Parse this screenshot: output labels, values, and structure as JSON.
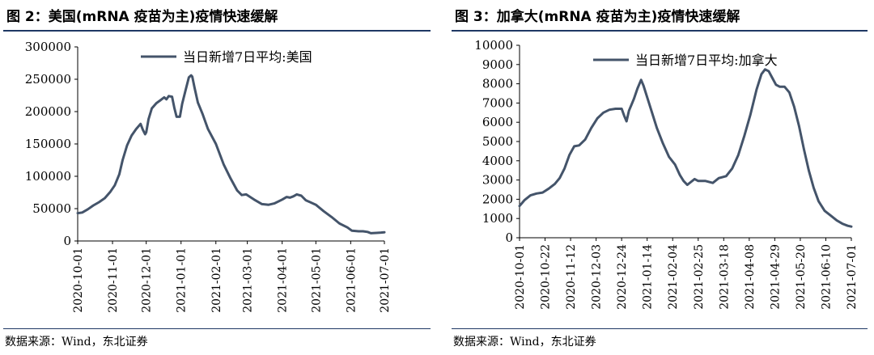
{
  "source_text": "数据来源：Wind，东北证券",
  "chart_data": [
    {
      "type": "line",
      "title": "图 2：美国(mRNA 疫苗为主)疫情快速缓解",
      "xlabel": "",
      "ylabel": "",
      "ylim": [
        0,
        300000
      ],
      "yticks": [
        0,
        50000,
        100000,
        150000,
        200000,
        250000,
        300000
      ],
      "xlim": [
        "2020-10-01",
        "2021-07-01"
      ],
      "xticks": [
        "2020-10-01",
        "2020-11-01",
        "2020-12-01",
        "2021-01-01",
        "2021-02-01",
        "2021-03-01",
        "2021-04-01",
        "2021-05-01",
        "2021-06-01",
        "2021-07-01"
      ],
      "grid": false,
      "legend_position": "top-center",
      "series": [
        {
          "name": "当日新增7日平均:美国",
          "color": "#44546a",
          "points": [
            [
              "2020-10-01",
              43000
            ],
            [
              "2020-10-05",
              44000
            ],
            [
              "2020-10-10",
              49000
            ],
            [
              "2020-10-15",
              55000
            ],
            [
              "2020-10-20",
              60000
            ],
            [
              "2020-10-25",
              66000
            ],
            [
              "2020-10-30",
              76000
            ],
            [
              "2020-11-03",
              86000
            ],
            [
              "2020-11-07",
              103000
            ],
            [
              "2020-11-10",
              125000
            ],
            [
              "2020-11-14",
              148000
            ],
            [
              "2020-11-18",
              163000
            ],
            [
              "2020-11-22",
              173000
            ],
            [
              "2020-11-26",
              181000
            ],
            [
              "2020-11-28",
              172000
            ],
            [
              "2020-11-30",
              165000
            ],
            [
              "2020-12-01",
              168000
            ],
            [
              "2020-12-03",
              188000
            ],
            [
              "2020-12-06",
              205000
            ],
            [
              "2020-12-10",
              213000
            ],
            [
              "2020-12-14",
              218000
            ],
            [
              "2020-12-17",
              222000
            ],
            [
              "2020-12-19",
              219000
            ],
            [
              "2020-12-21",
              224000
            ],
            [
              "2020-12-24",
              223000
            ],
            [
              "2020-12-26",
              206000
            ],
            [
              "2020-12-28",
              192000
            ],
            [
              "2020-12-31",
              192000
            ],
            [
              "2021-01-02",
              212000
            ],
            [
              "2021-01-05",
              233000
            ],
            [
              "2021-01-08",
              253000
            ],
            [
              "2021-01-10",
              256000
            ],
            [
              "2021-01-11",
              254000
            ],
            [
              "2021-01-13",
              237000
            ],
            [
              "2021-01-16",
              214000
            ],
            [
              "2021-01-20",
              197000
            ],
            [
              "2021-01-25",
              173000
            ],
            [
              "2021-02-01",
              150000
            ],
            [
              "2021-02-08",
              118000
            ],
            [
              "2021-02-14",
              97000
            ],
            [
              "2021-02-20",
              78000
            ],
            [
              "2021-02-24",
              71000
            ],
            [
              "2021-02-28",
              72000
            ],
            [
              "2021-03-07",
              64000
            ],
            [
              "2021-03-14",
              57000
            ],
            [
              "2021-03-20",
              56000
            ],
            [
              "2021-03-25",
              58000
            ],
            [
              "2021-04-01",
              64000
            ],
            [
              "2021-04-05",
              68000
            ],
            [
              "2021-04-08",
              67000
            ],
            [
              "2021-04-11",
              69000
            ],
            [
              "2021-04-14",
              72000
            ],
            [
              "2021-04-18",
              70000
            ],
            [
              "2021-04-22",
              63000
            ],
            [
              "2021-05-01",
              56000
            ],
            [
              "2021-05-08",
              46000
            ],
            [
              "2021-05-15",
              37000
            ],
            [
              "2021-05-22",
              27000
            ],
            [
              "2021-05-29",
              21000
            ],
            [
              "2021-06-02",
              16000
            ],
            [
              "2021-06-08",
              15000
            ],
            [
              "2021-06-12",
              15000
            ],
            [
              "2021-06-16",
              14000
            ],
            [
              "2021-06-19",
              12000
            ],
            [
              "2021-06-24",
              12500
            ],
            [
              "2021-06-28",
              13000
            ],
            [
              "2021-07-01",
              13500
            ]
          ]
        }
      ]
    },
    {
      "type": "line",
      "title": "图 3：加拿大(mRNA 疫苗为主)疫情快速缓解",
      "xlabel": "",
      "ylabel": "",
      "ylim": [
        0,
        10000
      ],
      "yticks": [
        0,
        1000,
        2000,
        3000,
        4000,
        5000,
        6000,
        7000,
        8000,
        9000,
        10000
      ],
      "xlim": [
        "2020-10-01",
        "2021-07-01"
      ],
      "xticks": [
        "2020-10-01",
        "2020-10-22",
        "2020-11-12",
        "2020-12-03",
        "2020-12-24",
        "2021-01-14",
        "2021-02-04",
        "2021-02-25",
        "2021-03-18",
        "2021-04-08",
        "2021-04-29",
        "2021-05-20",
        "2021-06-10",
        "2021-07-01"
      ],
      "grid": false,
      "legend_position": "top-center",
      "series": [
        {
          "name": "当日新增7日平均:加拿大",
          "color": "#44546a",
          "points": [
            [
              "2020-10-01",
              1650
            ],
            [
              "2020-10-05",
              1950
            ],
            [
              "2020-10-10",
              2200
            ],
            [
              "2020-10-15",
              2300
            ],
            [
              "2020-10-20",
              2350
            ],
            [
              "2020-10-25",
              2550
            ],
            [
              "2020-10-30",
              2800
            ],
            [
              "2020-11-03",
              3100
            ],
            [
              "2020-11-07",
              3600
            ],
            [
              "2020-11-11",
              4300
            ],
            [
              "2020-11-15",
              4750
            ],
            [
              "2020-11-19",
              4800
            ],
            [
              "2020-11-24",
              5100
            ],
            [
              "2020-11-29",
              5700
            ],
            [
              "2020-12-04",
              6200
            ],
            [
              "2020-12-09",
              6500
            ],
            [
              "2020-12-14",
              6650
            ],
            [
              "2020-12-19",
              6700
            ],
            [
              "2020-12-24",
              6700
            ],
            [
              "2020-12-26",
              6350
            ],
            [
              "2020-12-28",
              6050
            ],
            [
              "2020-12-30",
              6600
            ],
            [
              "2021-01-03",
              7200
            ],
            [
              "2021-01-06",
              7750
            ],
            [
              "2021-01-09",
              8200
            ],
            [
              "2021-01-11",
              7900
            ],
            [
              "2021-01-13",
              7500
            ],
            [
              "2021-01-17",
              6700
            ],
            [
              "2021-01-22",
              5700
            ],
            [
              "2021-01-27",
              4900
            ],
            [
              "2021-02-01",
              4200
            ],
            [
              "2021-02-06",
              3800
            ],
            [
              "2021-02-10",
              3250
            ],
            [
              "2021-02-13",
              2950
            ],
            [
              "2021-02-16",
              2750
            ],
            [
              "2021-02-19",
              2900
            ],
            [
              "2021-02-22",
              3050
            ],
            [
              "2021-02-25",
              2950
            ],
            [
              "2021-03-03",
              2950
            ],
            [
              "2021-03-09",
              2850
            ],
            [
              "2021-03-14",
              3100
            ],
            [
              "2021-03-20",
              3200
            ],
            [
              "2021-03-25",
              3600
            ],
            [
              "2021-03-30",
              4300
            ],
            [
              "2021-04-04",
              5300
            ],
            [
              "2021-04-09",
              6400
            ],
            [
              "2021-04-14",
              7700
            ],
            [
              "2021-04-18",
              8500
            ],
            [
              "2021-04-21",
              8750
            ],
            [
              "2021-04-24",
              8650
            ],
            [
              "2021-04-27",
              8300
            ],
            [
              "2021-04-30",
              7950
            ],
            [
              "2021-05-03",
              7850
            ],
            [
              "2021-05-07",
              7850
            ],
            [
              "2021-05-11",
              7550
            ],
            [
              "2021-05-15",
              6800
            ],
            [
              "2021-05-19",
              5800
            ],
            [
              "2021-05-23",
              4600
            ],
            [
              "2021-05-27",
              3500
            ],
            [
              "2021-05-31",
              2600
            ],
            [
              "2021-06-04",
              1900
            ],
            [
              "2021-06-09",
              1400
            ],
            [
              "2021-06-14",
              1150
            ],
            [
              "2021-06-19",
              900
            ],
            [
              "2021-06-24",
              720
            ],
            [
              "2021-06-28",
              620
            ],
            [
              "2021-07-01",
              580
            ]
          ]
        }
      ]
    }
  ]
}
